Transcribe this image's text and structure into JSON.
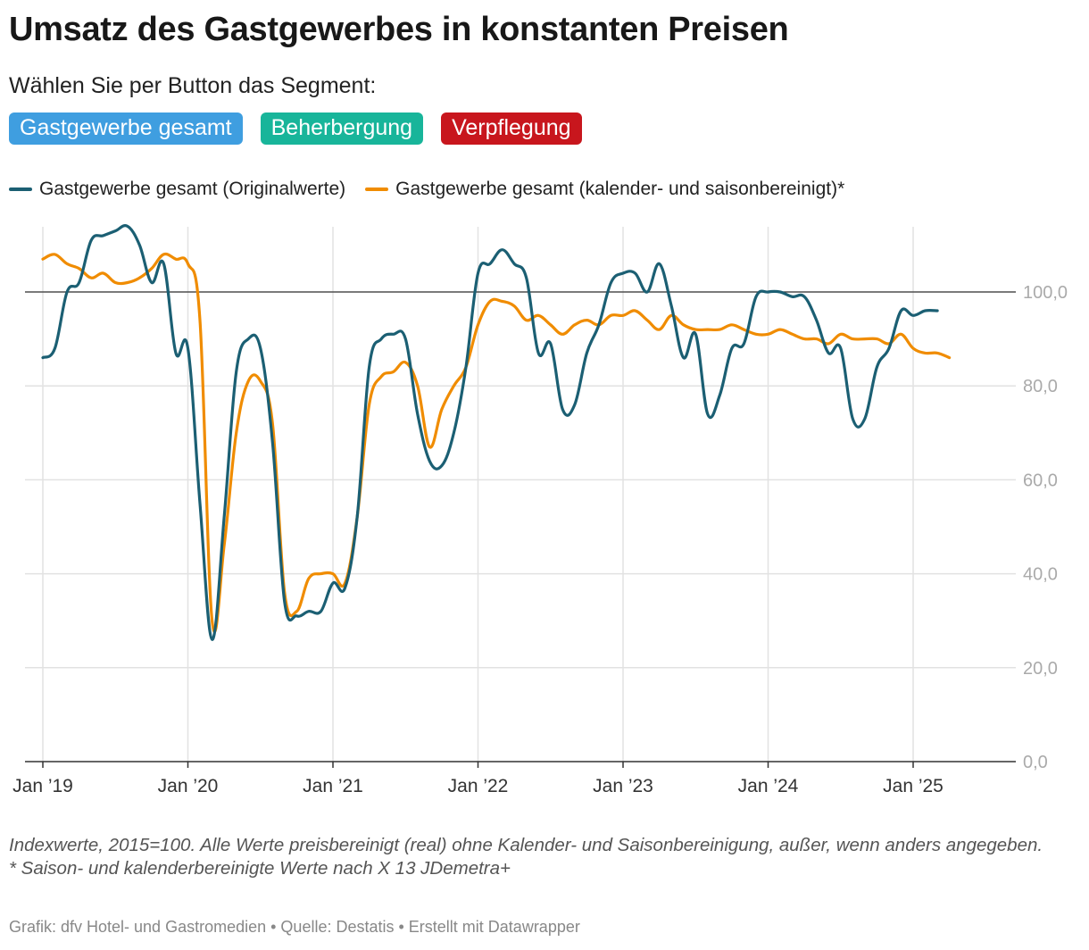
{
  "header": {
    "title": "Umsatz des Gastgewerbes in konstanten Preisen",
    "intro": "Wählen Sie per Button das Segment:"
  },
  "buttons": [
    {
      "label": "Gastgewerbe gesamt",
      "color": "#3f9ee0"
    },
    {
      "label": "Beherbergung",
      "color": "#18b59a"
    },
    {
      "label": "Verpflegung",
      "color": "#c8161d"
    }
  ],
  "footer": {
    "note1": "Indexwerte, 2015=100. Alle Werte preisbereinigt (real) ohne Kalender- und Saisonbereinigung, außer, wenn anders angegeben.",
    "note2": "* Saison- und kalenderbereinigte Werte nach X 13 JDemetra+",
    "credit": "Grafik: dfv Hotel- und Gastromedien • Quelle: Destatis • Erstellt mit Datawrapper"
  },
  "chart_data": {
    "type": "line",
    "title": "Umsatz des Gastgewerbes in konstanten Preisen",
    "x_start": "2019-01",
    "x_ticks": [
      "Jan ’19",
      "Jan ’20",
      "Jan ’21",
      "Jan ’22",
      "Jan ’23",
      "Jan ’24",
      "Jan ’25"
    ],
    "y_ticks": [
      "0,0",
      "20,0",
      "40,0",
      "60,0",
      "80,0",
      "100,0"
    ],
    "ylim": [
      0,
      115
    ],
    "reference_line": 100,
    "grid": true,
    "legend_position": "top-left",
    "series": [
      {
        "name": "Gastgewerbe gesamt (Originalwerte)",
        "color": "#1b5f73",
        "values": [
          86,
          88,
          100,
          102,
          111,
          112,
          113,
          114,
          110,
          102,
          106,
          87,
          88,
          55,
          26,
          52,
          83,
          90,
          88,
          68,
          34,
          31,
          32,
          32,
          38,
          37,
          52,
          84,
          90,
          91,
          90,
          74,
          64,
          63,
          70,
          84,
          104,
          106,
          109,
          106,
          103,
          87,
          89,
          75,
          76,
          87,
          93,
          102,
          104,
          104,
          100,
          106,
          97,
          86,
          91,
          74,
          78,
          88,
          89,
          99,
          100,
          100,
          99,
          99,
          94,
          87,
          88,
          73,
          73,
          84,
          88,
          96,
          95,
          96,
          96
        ]
      },
      {
        "name": "Gastgewerbe gesamt (kalender- und saisonbereinigt)*",
        "color": "#f08c00",
        "values": [
          107,
          108,
          106,
          105,
          103,
          104,
          102,
          102,
          103,
          105,
          108,
          107,
          106,
          94,
          30,
          46,
          70,
          81,
          81,
          72,
          36,
          32,
          39,
          40,
          40,
          38,
          52,
          76,
          82,
          83,
          85,
          80,
          67,
          75,
          80,
          84,
          93,
          98,
          98,
          97,
          94,
          95,
          93,
          91,
          93,
          94,
          93,
          95,
          95,
          96,
          94,
          92,
          95,
          93,
          92,
          92,
          92,
          93,
          92,
          91,
          91,
          92,
          91,
          90,
          90,
          89,
          91,
          90,
          90,
          90,
          89,
          91,
          88,
          87,
          87,
          86
        ]
      }
    ]
  }
}
